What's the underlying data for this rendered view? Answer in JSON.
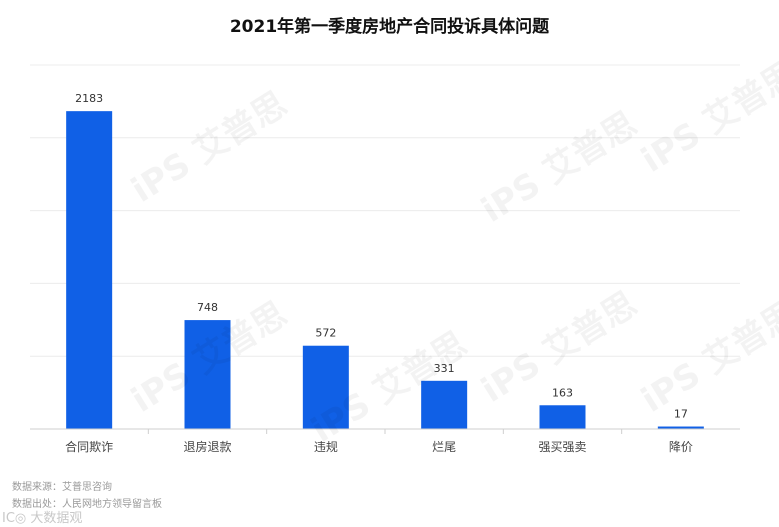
{
  "chart_data": {
    "type": "bar",
    "title": "2021年第一季度房地产合同投诉具体问题",
    "categories": [
      "合同欺诈",
      "退房退款",
      "违规",
      "烂尾",
      "强买强卖",
      "降价"
    ],
    "values": [
      2183,
      748,
      572,
      331,
      163,
      17
    ],
    "data_labels": [
      "2183",
      "748",
      "572",
      "331",
      "163",
      "17"
    ],
    "xlabel": "",
    "ylabel": "",
    "ylim": [
      0,
      2500
    ],
    "grid": true,
    "legend": "none",
    "bar_color": "#1060e6"
  },
  "footer": {
    "source": "数据来源：艾普思咨询",
    "origin": "数据出处：人民网地方领导留言板",
    "corner_mark": "IC◎ 大数据观"
  },
  "watermark": {
    "text": "iPS 艾普思"
  }
}
